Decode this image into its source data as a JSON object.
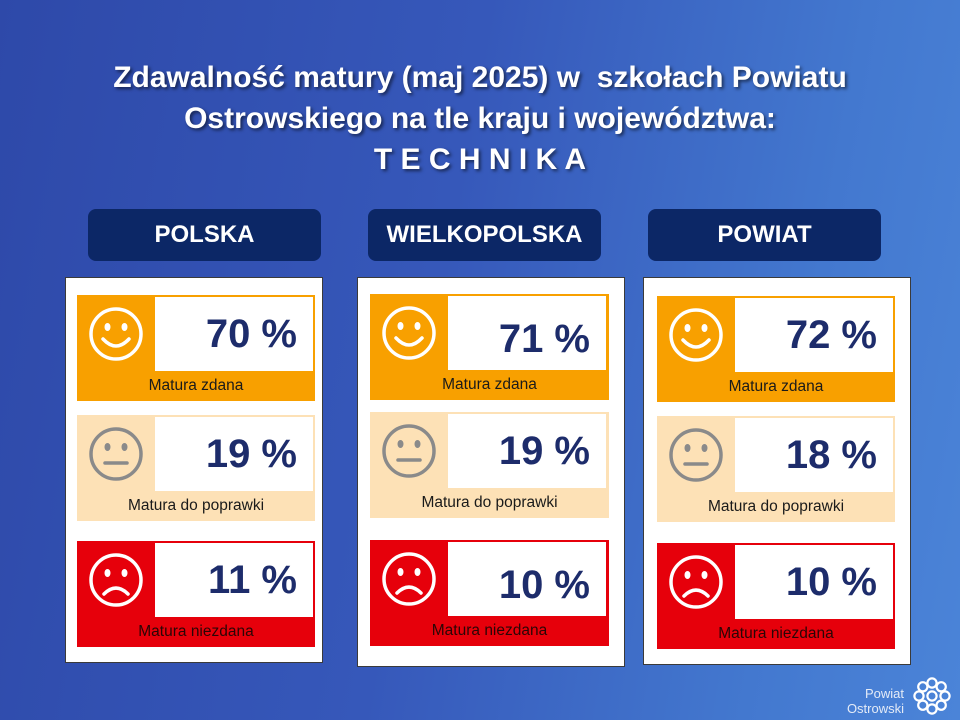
{
  "title": {
    "line1": "Zdawalność matury (maj 2025) w  szkołach Powiatu",
    "line2": "Ostrowskiego na tle kraju i województwa:",
    "line3": "T E C H N I K A"
  },
  "columns": [
    {
      "header": "POLSKA",
      "rows": [
        {
          "icon": "smile-icon",
          "value": "70 %",
          "label": "Matura zdana"
        },
        {
          "icon": "neutral-face-icon",
          "value": "19 %",
          "label": "Matura do poprawki"
        },
        {
          "icon": "sad-face-icon",
          "value": "11 %",
          "label": "Matura niezdana"
        }
      ]
    },
    {
      "header": "WIELKOPOLSKA",
      "rows": [
        {
          "icon": "smile-icon",
          "value": "71 %",
          "label": "Matura zdana"
        },
        {
          "icon": "neutral-face-icon",
          "value": "19 %",
          "label": "Matura do poprawki"
        },
        {
          "icon": "sad-face-icon",
          "value": "10 %",
          "label": "Matura niezdana"
        }
      ]
    },
    {
      "header": "POWIAT",
      "rows": [
        {
          "icon": "smile-icon",
          "value": "72 %",
          "label": "Matura zdana"
        },
        {
          "icon": "neutral-face-icon",
          "value": "18 %",
          "label": "Matura do poprawki"
        },
        {
          "icon": "sad-face-icon",
          "value": "10 %",
          "label": "Matura niezdana"
        }
      ]
    }
  ],
  "logo": {
    "line1": "Powiat",
    "line2": "Ostrowski",
    "icon": "flower-dots-icon"
  },
  "colors": {
    "pass": "#f8a000",
    "retake": "#fde1b6",
    "fail": "#e6000b",
    "header_bg": "#0c2766",
    "value_text": "#1d2c6b",
    "neutral_icon": "#8a8a8a"
  }
}
